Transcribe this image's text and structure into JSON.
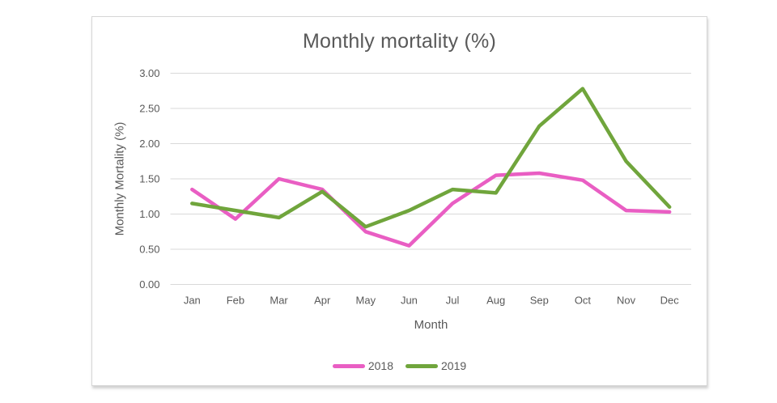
{
  "colors": {
    "text": "#595959",
    "gridline": "#d9d9d9",
    "frame_border": "#d6d6d6",
    "series_2018": "#e95ec3",
    "series_2019": "#70a53c"
  },
  "chart_data": {
    "type": "line",
    "title": "Monthly mortality (%)",
    "xlabel": "Month",
    "ylabel": "Monthly Mortality (%)",
    "categories": [
      "Jan",
      "Feb",
      "Mar",
      "Apr",
      "May",
      "Jun",
      "Jul",
      "Aug",
      "Sep",
      "Oct",
      "Nov",
      "Dec"
    ],
    "series": [
      {
        "name": "2018",
        "color": "#e95ec3",
        "values": [
          1.35,
          0.93,
          1.5,
          1.35,
          0.75,
          0.55,
          1.15,
          1.55,
          1.58,
          1.48,
          1.05,
          1.03
        ]
      },
      {
        "name": "2019",
        "color": "#70a53c",
        "values": [
          1.15,
          1.05,
          0.95,
          1.32,
          0.82,
          1.05,
          1.35,
          1.3,
          2.25,
          2.78,
          1.75,
          1.1
        ]
      }
    ],
    "ylim": [
      0,
      3
    ],
    "y_tick_step": 0.5,
    "y_tick_labels": [
      "0.00",
      "0.50",
      "1.00",
      "1.50",
      "2.00",
      "2.50",
      "3.00"
    ],
    "grid": true,
    "legend_position": "bottom"
  }
}
